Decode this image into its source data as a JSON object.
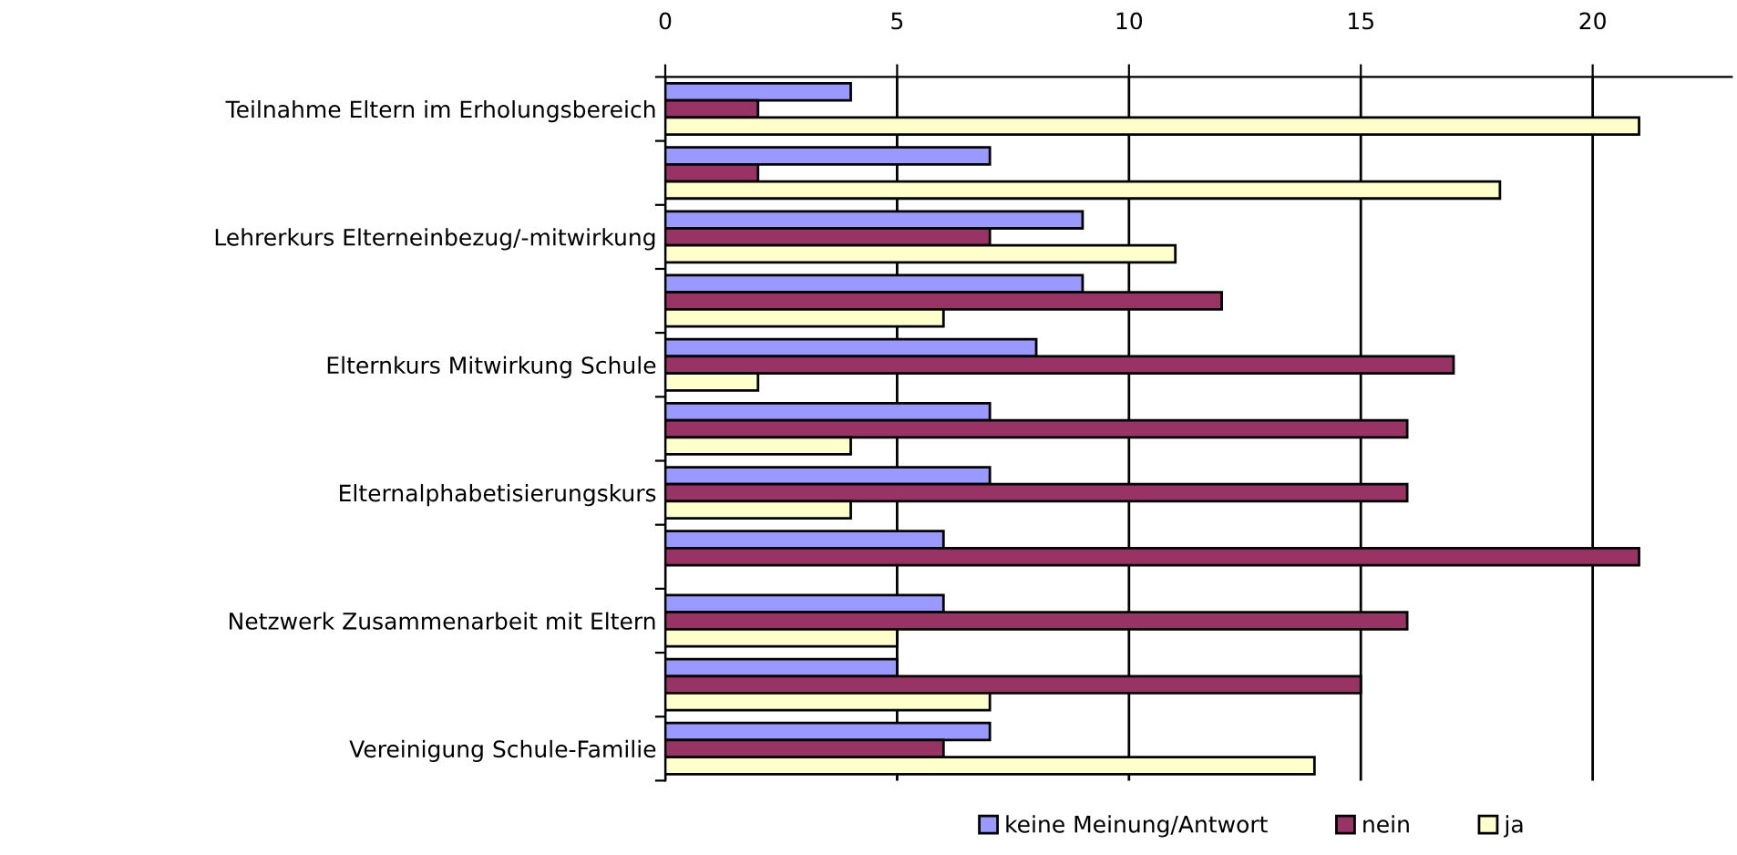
{
  "chart_data": {
    "type": "bar",
    "orientation": "horizontal",
    "categories": [
      "Teilnahme Eltern im Erholungsbereich",
      null,
      "Lehrerkurs Elterneinbezug/-mitwirkung",
      null,
      "Elternkurs Mitwirkung Schule",
      null,
      "Elternalphabetisierungskurs",
      null,
      "Netzwerk Zusammenarbeit mit Eltern",
      null,
      "Vereinigung Schule-Familie"
    ],
    "series": [
      {
        "name": "keine Meinung/Antwort",
        "color": "#9999ff",
        "values": [
          4,
          7,
          9,
          9,
          8,
          7,
          7,
          6,
          6,
          5,
          7
        ]
      },
      {
        "name": "nein",
        "color": "#993366",
        "values": [
          2,
          2,
          7,
          12,
          17,
          16,
          16,
          21,
          16,
          15,
          6
        ]
      },
      {
        "name": "ja",
        "color": "#ffffcc",
        "values": [
          21,
          18,
          11,
          6,
          2,
          4,
          4,
          null,
          5,
          7,
          14
        ]
      }
    ],
    "xlim": [
      0,
      23
    ],
    "xticks": [
      0,
      5,
      10,
      15,
      20
    ],
    "grid": "x",
    "legend": "bottom"
  }
}
